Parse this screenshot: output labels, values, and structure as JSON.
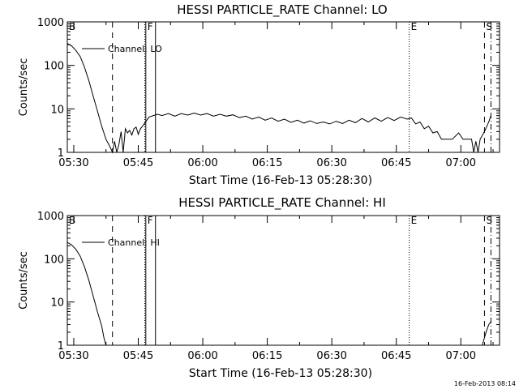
{
  "footer_timestamp": "16-Feb-2013 08:14",
  "chart_data": [
    {
      "type": "line",
      "title": "HESSI PARTICLE_RATE Channel: LO",
      "xlabel": "Start Time (16-Feb-13 05:28:30)",
      "ylabel": "Counts/sec",
      "yscale": "log",
      "ylim": [
        1,
        1000
      ],
      "xlim": [
        "05:28:30",
        "07:09:00"
      ],
      "yticks": [
        "1",
        "10",
        "100",
        "1000"
      ],
      "xticks": [
        "05:30",
        "05:45",
        "06:00",
        "06:15",
        "06:30",
        "06:45",
        "07:00"
      ],
      "legend": {
        "position": "top-left",
        "entries": [
          "Channel: LO"
        ]
      },
      "markers": [
        {
          "label": "B",
          "time": "05:28:30",
          "style": "none"
        },
        {
          "label": "",
          "time": "05:39:00",
          "style": "dashed"
        },
        {
          "label": "",
          "time": "05:46:30",
          "style": "dotted"
        },
        {
          "label": "F",
          "time": "05:46:45",
          "style": "solid"
        },
        {
          "label": "",
          "time": "05:49:00",
          "style": "solid"
        },
        {
          "label": "E",
          "time": "06:48:00",
          "style": "dotted"
        },
        {
          "label": "S",
          "time": "07:05:30",
          "style": "dashed"
        },
        {
          "label": "",
          "time": "07:07:00",
          "style": "dashdot"
        }
      ],
      "series": [
        {
          "name": "Channel: LO",
          "points": [
            [
              "05:28:30",
              320
            ],
            [
              "05:29:30",
              280
            ],
            [
              "05:30:30",
              220
            ],
            [
              "05:31:30",
              160
            ],
            [
              "05:32:30",
              90
            ],
            [
              "05:33:30",
              45
            ],
            [
              "05:34:30",
              20
            ],
            [
              "05:35:30",
              9
            ],
            [
              "05:36:30",
              4
            ],
            [
              "05:37:30",
              2
            ],
            [
              "05:38:30",
              1.3
            ],
            [
              "05:39:00",
              1
            ],
            [
              "05:39:30",
              1.8
            ],
            [
              "05:40:00",
              1
            ],
            [
              "05:40:30",
              1.5
            ],
            [
              "05:41:00",
              3
            ],
            [
              "05:41:30",
              1
            ],
            [
              "05:42:00",
              3.5
            ],
            [
              "05:42:30",
              2.8
            ],
            [
              "05:43:00",
              3.2
            ],
            [
              "05:43:30",
              2.5
            ],
            [
              "05:44:00",
              3.5
            ],
            [
              "05:44:30",
              3.8
            ],
            [
              "05:45:00",
              2.6
            ],
            [
              "05:45:30",
              3.5
            ],
            [
              "05:46:00",
              4
            ],
            [
              "05:47:30",
              6.5
            ],
            [
              "05:48:30",
              7
            ],
            [
              "05:49:30",
              7.5
            ],
            [
              "05:50:30",
              7
            ],
            [
              "05:52:00",
              7.8
            ],
            [
              "05:53:30",
              6.8
            ],
            [
              "05:55:00",
              7.8
            ],
            [
              "05:56:30",
              7.2
            ],
            [
              "05:58:00",
              8
            ],
            [
              "05:59:30",
              7.2
            ],
            [
              "06:01:00",
              7.8
            ],
            [
              "06:02:30",
              6.8
            ],
            [
              "06:04:00",
              7.5
            ],
            [
              "06:05:30",
              6.8
            ],
            [
              "06:07:00",
              7.3
            ],
            [
              "06:08:30",
              6.3
            ],
            [
              "06:10:00",
              6.8
            ],
            [
              "06:11:30",
              5.8
            ],
            [
              "06:13:00",
              6.5
            ],
            [
              "06:14:30",
              5.5
            ],
            [
              "06:16:00",
              6.2
            ],
            [
              "06:17:30",
              5.2
            ],
            [
              "06:19:00",
              5.8
            ],
            [
              "06:20:30",
              4.9
            ],
            [
              "06:22:00",
              5.5
            ],
            [
              "06:23:30",
              4.7
            ],
            [
              "06:25:00",
              5.3
            ],
            [
              "06:26:30",
              4.6
            ],
            [
              "06:28:00",
              5
            ],
            [
              "06:29:30",
              4.5
            ],
            [
              "06:31:00",
              5.2
            ],
            [
              "06:32:30",
              4.6
            ],
            [
              "06:34:00",
              5.5
            ],
            [
              "06:35:30",
              4.8
            ],
            [
              "06:37:00",
              6
            ],
            [
              "06:38:30",
              5
            ],
            [
              "06:40:00",
              6.2
            ],
            [
              "06:41:30",
              5.2
            ],
            [
              "06:43:00",
              6.3
            ],
            [
              "06:44:30",
              5.4
            ],
            [
              "06:46:00",
              6.5
            ],
            [
              "06:47:30",
              5.8
            ],
            [
              "06:48:30",
              6.2
            ],
            [
              "06:49:30",
              4.5
            ],
            [
              "06:50:30",
              5
            ],
            [
              "06:51:30",
              3.5
            ],
            [
              "06:52:30",
              4
            ],
            [
              "06:53:30",
              2.8
            ],
            [
              "06:54:30",
              3
            ],
            [
              "06:55:30",
              2
            ],
            [
              "06:58:00",
              2
            ],
            [
              "06:59:30",
              2.8
            ],
            [
              "07:00:30",
              2
            ],
            [
              "07:02:30",
              2
            ],
            [
              "07:03:00",
              1
            ],
            [
              "07:03:30",
              1.8
            ],
            [
              "07:04:00",
              1
            ],
            [
              "07:04:30",
              2
            ],
            [
              "07:05:30",
              3
            ],
            [
              "07:06:30",
              5
            ],
            [
              "07:07:00",
              7
            ]
          ]
        }
      ]
    },
    {
      "type": "line",
      "title": "HESSI PARTICLE_RATE Channel: HI",
      "xlabel": "Start Time (16-Feb-13 05:28:30)",
      "ylabel": "Counts/sec",
      "yscale": "log",
      "ylim": [
        1,
        1000
      ],
      "xlim": [
        "05:28:30",
        "07:09:00"
      ],
      "yticks": [
        "1",
        "10",
        "100",
        "1000"
      ],
      "xticks": [
        "05:30",
        "05:45",
        "06:00",
        "06:15",
        "06:30",
        "06:45",
        "07:00"
      ],
      "legend": {
        "position": "top-left",
        "entries": [
          "Channel: HI"
        ]
      },
      "markers": [
        {
          "label": "B",
          "time": "05:28:30",
          "style": "none"
        },
        {
          "label": "",
          "time": "05:39:00",
          "style": "dashed"
        },
        {
          "label": "",
          "time": "05:46:30",
          "style": "dotted"
        },
        {
          "label": "F",
          "time": "05:46:45",
          "style": "solid"
        },
        {
          "label": "",
          "time": "05:49:00",
          "style": "solid"
        },
        {
          "label": "E",
          "time": "06:48:00",
          "style": "dotted"
        },
        {
          "label": "S",
          "time": "07:05:30",
          "style": "dashed"
        },
        {
          "label": "",
          "time": "07:07:00",
          "style": "dashdot"
        }
      ],
      "series": [
        {
          "name": "Channel: HI",
          "points": [
            [
              "05:28:30",
              240
            ],
            [
              "05:29:30",
              210
            ],
            [
              "05:30:30",
              165
            ],
            [
              "05:31:30",
              115
            ],
            [
              "05:32:30",
              65
            ],
            [
              "05:33:30",
              32
            ],
            [
              "05:34:30",
              14
            ],
            [
              "05:35:30",
              6
            ],
            [
              "05:36:30",
              2.8
            ],
            [
              "05:37:00",
              1.5
            ],
            [
              "05:37:30",
              1
            ]
          ]
        },
        {
          "name": "",
          "points": [
            [
              "07:05:00",
              1
            ],
            [
              "07:05:30",
              1.5
            ],
            [
              "07:06:00",
              2.2
            ],
            [
              "07:06:30",
              3
            ],
            [
              "07:07:00",
              3.5
            ]
          ]
        }
      ]
    }
  ]
}
